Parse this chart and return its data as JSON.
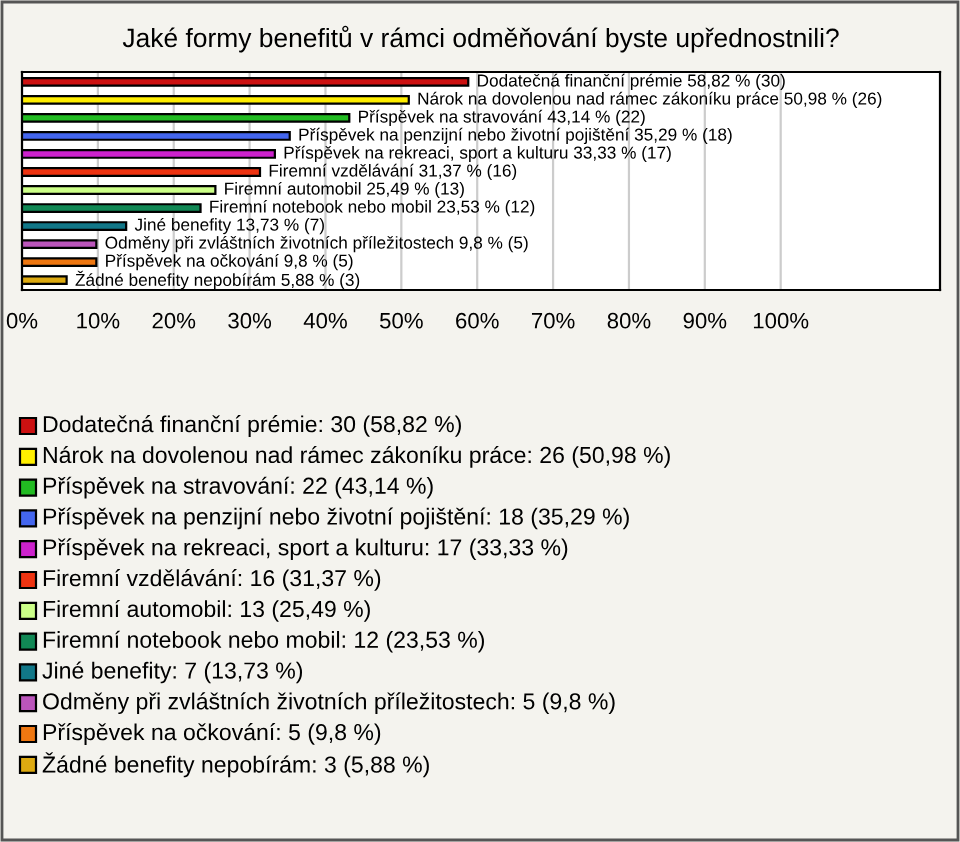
{
  "chart_data": {
    "type": "bar",
    "orientation": "horizontal",
    "title": "Jaké formy benefitů v rámci odměňování byste upřednostnili?",
    "categories": [
      null,
      null,
      null,
      null,
      null,
      null,
      null,
      null,
      null,
      null,
      null,
      null
    ],
    "values": [
      58.82,
      50.98,
      43.14,
      35.29,
      33.33,
      31.37,
      25.49,
      23.53,
      13.73,
      9.8,
      9.8,
      5.88
    ],
    "colors": [
      "#cc1111",
      "#ffee00",
      "#22bb22",
      "#4466ee",
      "#cc22cc",
      "#ee3311",
      "#ccff88",
      "#118855",
      "#117788",
      "#bb55bb",
      "#ee7711",
      "#ddaa11"
    ],
    "value_labels": [
      "Dodatečná finanční prémie 58,82 % (30)",
      "Nárok na dovolenou nad rámec zákoníku práce 50,98 % (26)",
      "Příspěvek na stravování 43,14 % (22)",
      "Příspěvek na penzijní nebo životní pojištění 35,29 % (18)",
      "Příspěvek na rekreaci, sport a kulturu 33,33 % (17)",
      "Firemní vzdělávání 31,37 % (16)",
      "Firemní automobil 25,49 % (13)",
      "Firemní notebook nebo mobil 23,53 % (12)",
      "Jiné benefity 13,73 % (7)",
      "Odměny při zvláštních životních příležitostech 9,8 % (5)",
      "Příspěvek na očkování 9,8 % (5)",
      "Žádné benefity nepobírám 5,88 % (3)"
    ],
    "annotations": [
      "Dodatečná finanční prémie: 30 (58,82 %)",
      "Nárok na dovolenou nad rámec zákoníku práce: 26 (50,98 %)",
      "Příspěvek na stravování: 22 (43,14 %)",
      "Příspěvek na penzijní nebo životní pojištění: 18 (35,29 %)",
      "Příspěvek na rekreaci, sport a kulturu: 17 (33,33 %)",
      "Firemní vzdělávání: 16 (31,37 %)",
      "Firemní automobil: 13 (25,49 %)",
      "Firemní notebook nebo mobil: 12 (23,53 %)",
      "Jiné benefity: 7 (13,73 %)",
      "Odměny při zvláštních životních příležitostech: 5 (9,8 %)",
      "Příspěvek na očkování: 5 (9,8 %)",
      "Žádné benefity nepobírám: 3 (5,88 %)"
    ],
    "xlim": [
      0,
      121
    ],
    "xticks": [
      {
        "value": 0,
        "label": "0%"
      },
      {
        "value": 10,
        "label": "10%"
      },
      {
        "value": 20,
        "label": "20%"
      },
      {
        "value": 30,
        "label": "30%"
      },
      {
        "value": 40,
        "label": "40%"
      },
      {
        "value": 50,
        "label": "50%"
      },
      {
        "value": 60,
        "label": "60%"
      },
      {
        "value": 70,
        "label": "70%"
      },
      {
        "value": 80,
        "label": "80%"
      },
      {
        "value": 90,
        "label": "90%"
      },
      {
        "value": 100,
        "label": "100%"
      }
    ],
    "grid": "x"
  }
}
